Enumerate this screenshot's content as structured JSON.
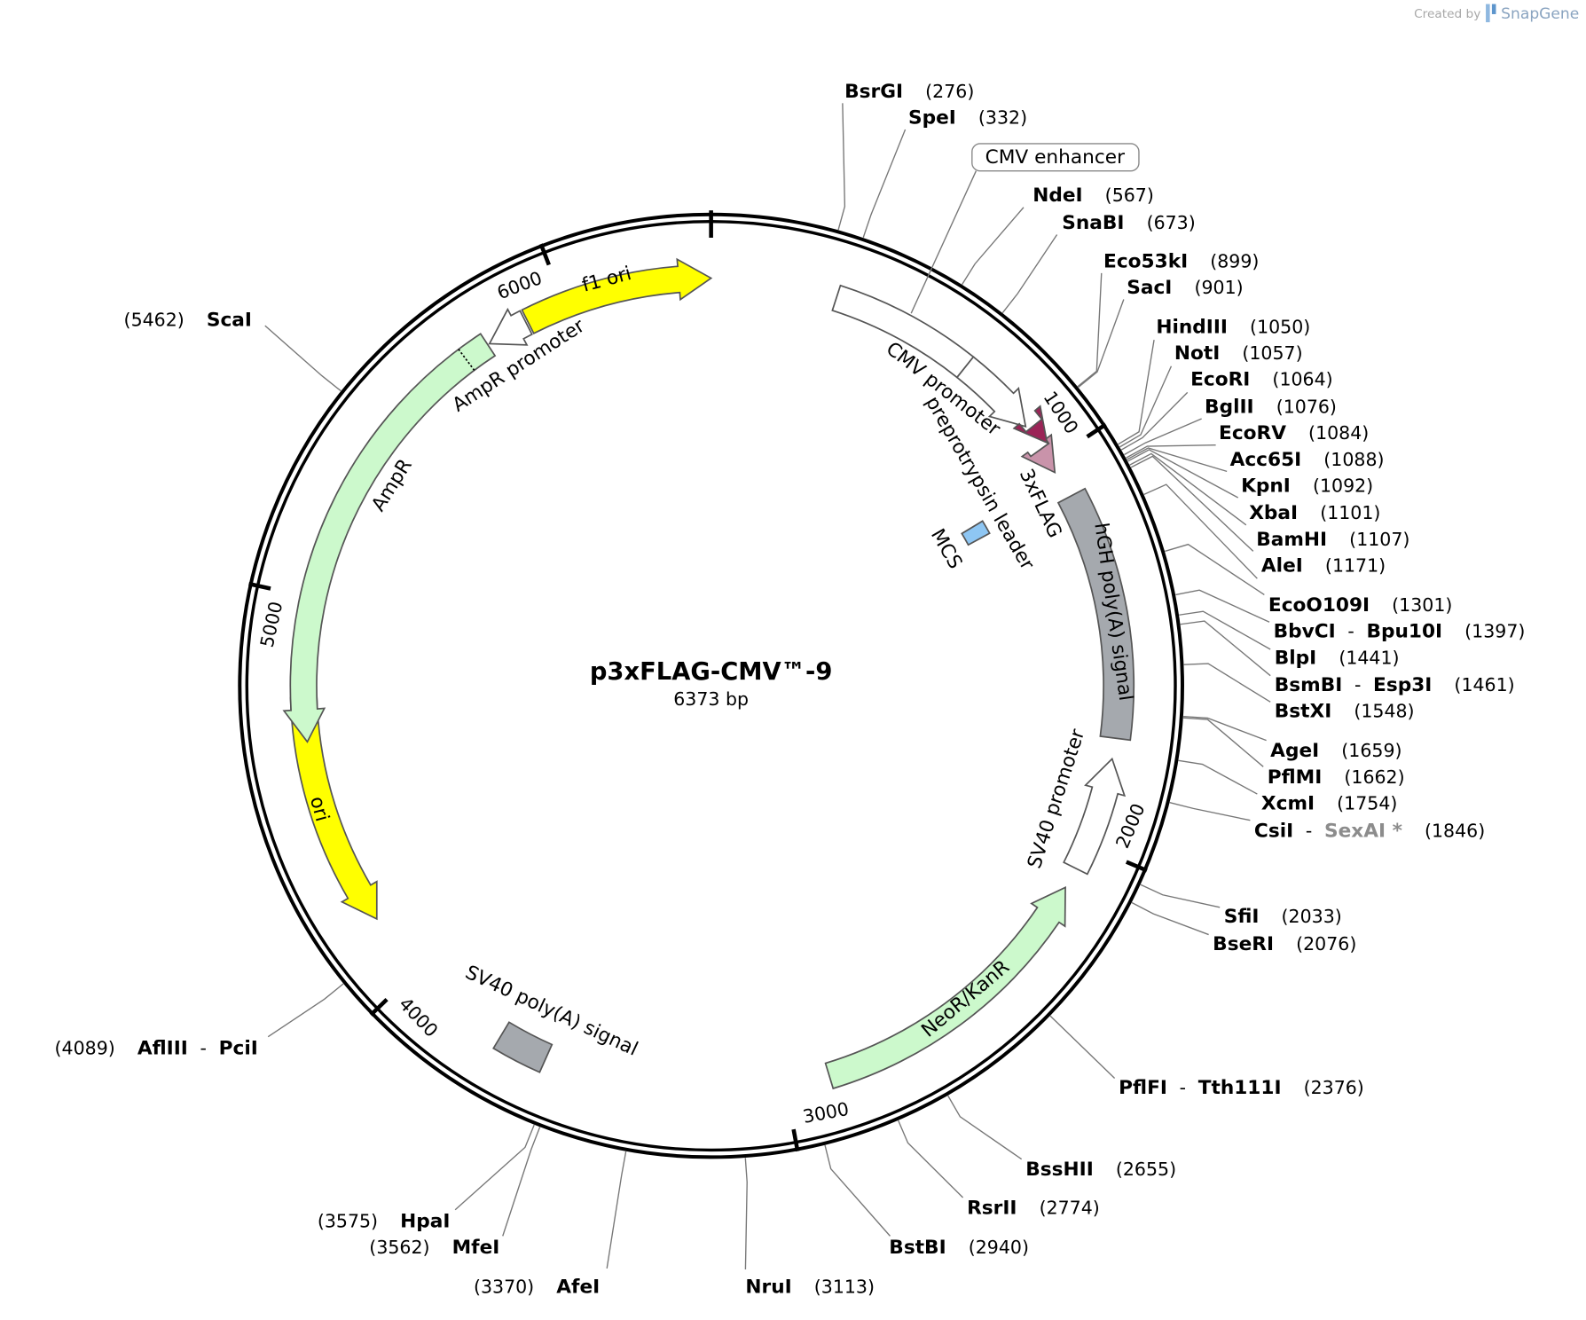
{
  "header": {
    "created_by": "Created by",
    "brand": "SnapGene"
  },
  "plasmid": {
    "name": "p3xFLAG-CMV™-9",
    "length": {
      "value": 6373,
      "label": "6373 bp"
    }
  },
  "ticks": [
    1000,
    2000,
    3000,
    4000,
    5000,
    6000
  ],
  "separator": "-",
  "features": [
    {
      "name": "CMV enhancer",
      "color": "#ffffff"
    },
    {
      "name": "CMV promoter",
      "color": "#ffffff"
    },
    {
      "name": "preprotrypsin leader",
      "color": "#c993aa"
    },
    {
      "name": "3xFLAG",
      "color": "#9b2457"
    },
    {
      "name": "MCS",
      "color": "#8ec6f3"
    },
    {
      "name": "hGH poly(A) signal",
      "color": "#a5a9ae"
    },
    {
      "name": "SV40 promoter",
      "color": "#ffffff"
    },
    {
      "name": "NeoR/KanR",
      "color": "#ccf9cc"
    },
    {
      "name": "SV40 poly(A) signal",
      "color": "#a5a9ae"
    },
    {
      "name": "ori",
      "color": "#ffff00"
    },
    {
      "name": "AmpR",
      "color": "#ccf9cc"
    },
    {
      "name": "AmpR promoter",
      "color": "#ffffff"
    },
    {
      "name": "f1 ori",
      "color": "#ffff00"
    }
  ],
  "enzymes": [
    {
      "names": [
        "BsrGI"
      ],
      "position": 276,
      "position_label": "(276)"
    },
    {
      "names": [
        "SpeI"
      ],
      "position": 332,
      "position_label": "(332)"
    },
    {
      "names": [
        "NdeI"
      ],
      "position": 567,
      "position_label": "(567)"
    },
    {
      "names": [
        "SnaBI"
      ],
      "position": 673,
      "position_label": "(673)"
    },
    {
      "names": [
        "Eco53kI"
      ],
      "position": 899,
      "position_label": "(899)"
    },
    {
      "names": [
        "SacI"
      ],
      "position": 901,
      "position_label": "(901)"
    },
    {
      "names": [
        "HindIII"
      ],
      "position": 1050,
      "position_label": "(1050)"
    },
    {
      "names": [
        "NotI"
      ],
      "position": 1057,
      "position_label": "(1057)"
    },
    {
      "names": [
        "EcoRI"
      ],
      "position": 1064,
      "position_label": "(1064)"
    },
    {
      "names": [
        "BglII"
      ],
      "position": 1076,
      "position_label": "(1076)"
    },
    {
      "names": [
        "EcoRV"
      ],
      "position": 1084,
      "position_label": "(1084)"
    },
    {
      "names": [
        "Acc65I"
      ],
      "position": 1088,
      "position_label": "(1088)"
    },
    {
      "names": [
        "KpnI"
      ],
      "position": 1092,
      "position_label": "(1092)"
    },
    {
      "names": [
        "XbaI"
      ],
      "position": 1101,
      "position_label": "(1101)"
    },
    {
      "names": [
        "BamHI"
      ],
      "position": 1107,
      "position_label": "(1107)"
    },
    {
      "names": [
        "AleI"
      ],
      "position": 1171,
      "position_label": "(1171)"
    },
    {
      "names": [
        "EcoO109I"
      ],
      "position": 1301,
      "position_label": "(1301)"
    },
    {
      "names": [
        "BbvCI",
        "Bpu10I"
      ],
      "position": 1397,
      "position_label": "(1397)"
    },
    {
      "names": [
        "BlpI"
      ],
      "position": 1441,
      "position_label": "(1441)"
    },
    {
      "names": [
        "BsmBI",
        "Esp3I"
      ],
      "position": 1461,
      "position_label": "(1461)"
    },
    {
      "names": [
        "BstXI"
      ],
      "position": 1548,
      "position_label": "(1548)"
    },
    {
      "names": [
        "AgeI"
      ],
      "position": 1659,
      "position_label": "(1659)"
    },
    {
      "names": [
        "PflMI"
      ],
      "position": 1662,
      "position_label": "(1662)"
    },
    {
      "names": [
        "XcmI"
      ],
      "position": 1754,
      "position_label": "(1754)"
    },
    {
      "names": [
        "CsiI",
        "SexAI *"
      ],
      "name_colors": [
        "#000000",
        "#8c8c8c"
      ],
      "position": 1846,
      "position_label": "(1846)"
    },
    {
      "names": [
        "SfiI"
      ],
      "position": 2033,
      "position_label": "(2033)"
    },
    {
      "names": [
        "BseRI"
      ],
      "position": 2076,
      "position_label": "(2076)"
    },
    {
      "names": [
        "PflFI",
        "Tth111I"
      ],
      "position": 2376,
      "position_label": "(2376)"
    },
    {
      "names": [
        "BssHII"
      ],
      "position": 2655,
      "position_label": "(2655)"
    },
    {
      "names": [
        "RsrII"
      ],
      "position": 2774,
      "position_label": "(2774)"
    },
    {
      "names": [
        "BstBI"
      ],
      "position": 2940,
      "position_label": "(2940)"
    },
    {
      "names": [
        "NruI"
      ],
      "position": 3113,
      "position_label": "(3113)"
    },
    {
      "names": [
        "AfeI"
      ],
      "position": 3370,
      "position_label": "(3370)"
    },
    {
      "names": [
        "MfeI"
      ],
      "position": 3562,
      "position_label": "(3562)"
    },
    {
      "names": [
        "HpaI"
      ],
      "position": 3575,
      "position_label": "(3575)"
    },
    {
      "names": [
        "AflIII",
        "PciI"
      ],
      "position": 4089,
      "position_label": "(4089)"
    },
    {
      "names": [
        "ScaI"
      ],
      "position": 5462,
      "position_label": "(5462)"
    }
  ]
}
